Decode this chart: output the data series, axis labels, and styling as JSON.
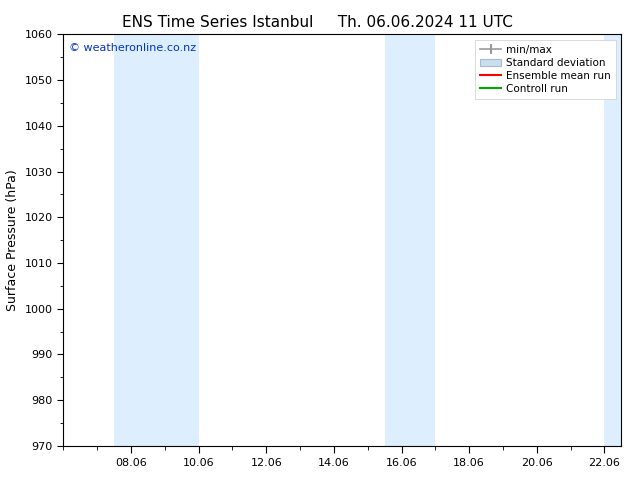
{
  "title_left": "ENS Time Series Istanbul",
  "title_right": "Th. 06.06.2024 11 UTC",
  "ylabel": "Surface Pressure (hPa)",
  "ylim": [
    970,
    1060
  ],
  "yticks": [
    970,
    980,
    990,
    1000,
    1010,
    1020,
    1030,
    1040,
    1050,
    1060
  ],
  "xlim_start": 6.0,
  "xlim_end": 22.5,
  "xtick_labels": [
    "08.06",
    "10.06",
    "12.06",
    "14.06",
    "16.06",
    "18.06",
    "20.06",
    "22.06"
  ],
  "xtick_positions": [
    8.0,
    10.0,
    12.0,
    14.0,
    16.0,
    18.0,
    20.0,
    22.0
  ],
  "shaded_bands": [
    {
      "x_start": 7.5,
      "x_end": 10.0
    },
    {
      "x_start": 15.5,
      "x_end": 17.0
    },
    {
      "x_start": 22.0,
      "x_end": 22.5
    }
  ],
  "shaded_color": "#ddeeff",
  "background_color": "#ffffff",
  "watermark": "© weatheronline.co.nz",
  "watermark_color": "#0033cc",
  "legend_entries": [
    {
      "label": "min/max",
      "style": "minmax"
    },
    {
      "label": "Standard deviation",
      "style": "fill"
    },
    {
      "label": "Ensemble mean run",
      "style": "line",
      "color": "#ff0000"
    },
    {
      "label": "Controll run",
      "style": "line",
      "color": "#00aa00"
    }
  ],
  "title_fontsize": 11,
  "axis_label_fontsize": 9,
  "tick_fontsize": 8,
  "legend_fontsize": 7.5
}
